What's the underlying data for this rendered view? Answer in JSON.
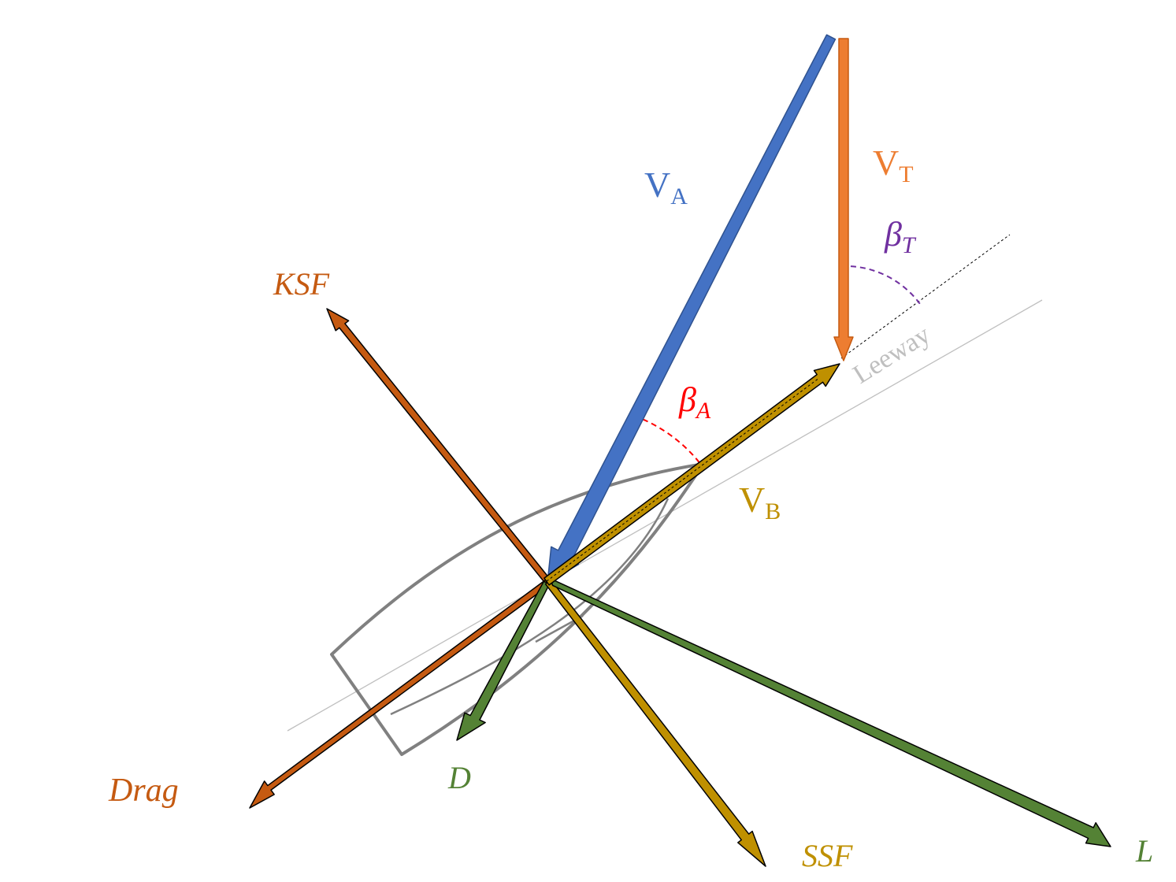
{
  "labels": {
    "va": {
      "main": "V",
      "sub": "A"
    },
    "vt": {
      "main": "V",
      "sub": "T"
    },
    "vb": {
      "main": "V",
      "sub": "B"
    },
    "beta_t": {
      "main": "β",
      "sub": "T"
    },
    "beta_a": {
      "main": "β",
      "sub": "A"
    },
    "ksf": "KSF",
    "drag": "Drag",
    "d": "D",
    "ssf": "SSF",
    "l": "L",
    "leeway": "Leeway"
  },
  "colors": {
    "apparent_wind": "#4472c4",
    "true_wind": "#ed7d31",
    "boat_velocity": "#bf9000",
    "keel_force": "#c55a11",
    "sail_green": "#548235",
    "hull": "#808080",
    "leeway_line": "#bfbfbf",
    "beta_t": "#7030a0",
    "beta_a": "#ff0000"
  }
}
